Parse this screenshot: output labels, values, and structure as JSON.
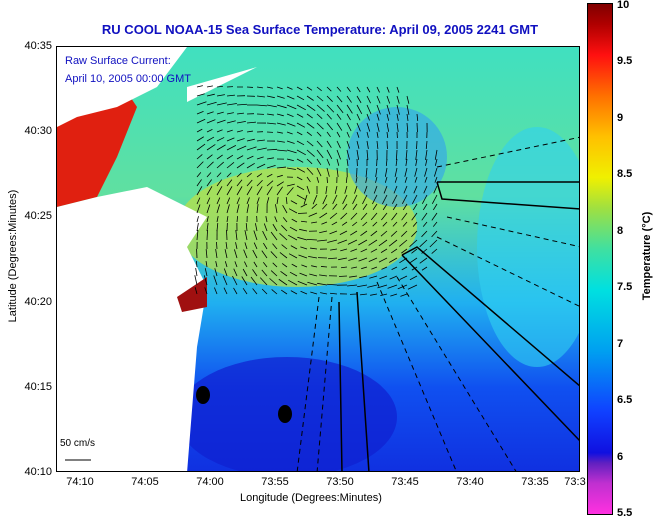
{
  "title": "RU COOL  NOAA-15  Sea Surface Temperature:  April 09, 2005 2241 GMT",
  "legend": {
    "line1": "Raw Surface Current:",
    "line2": "April 10, 2005 00:00 GMT"
  },
  "scale_label": "50 cm/s",
  "y_axis": {
    "title": "Latitude (Degrees:Minutes)",
    "ticks": [
      "40:35",
      "40:30",
      "40:25",
      "40:20",
      "40:15",
      "40:10"
    ]
  },
  "x_axis": {
    "title": "Longitude (Degrees:Minutes)",
    "ticks": [
      "74:10",
      "74:05",
      "74:00",
      "73:55",
      "73:50",
      "73:45",
      "73:40",
      "73:35",
      "73:3"
    ]
  },
  "colorbar": {
    "title": "Temperature (°C)",
    "ticks": [
      "10",
      "9.5",
      "9",
      "8.5",
      "8",
      "7.5",
      "7",
      "6.5",
      "6",
      "5.5"
    ]
  }
}
